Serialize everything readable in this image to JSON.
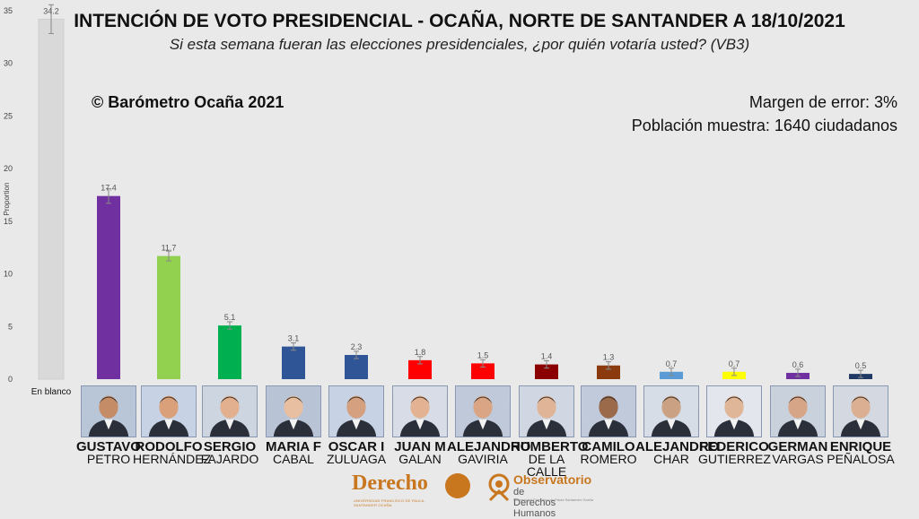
{
  "header": {
    "title": "INTENCIÓN DE VOTO PRESIDENCIAL - OCAÑA, NORTE DE SANTANDER A 18/10/2021",
    "subtitle": "Si esta semana fueran las elecciones presidenciales, ¿por quién votaría usted? (VB3)"
  },
  "copyright": "© Barómetro Ocaña 2021",
  "margin_of_error": "Margen de error: 3%",
  "sample": "Población muestra: 1640 ciudadanos",
  "chart_data": {
    "type": "bar",
    "ylabel": "Proportion",
    "ylim": [
      0,
      35
    ],
    "yticks": [
      0,
      5,
      10,
      15,
      20,
      25,
      30,
      35
    ],
    "grid": false,
    "error_bars": true,
    "categories": [
      "En blanco",
      "GUSTAVO PETRO",
      "RODOLFO HERNÁNDEZ",
      "SERGIO FAJARDO",
      "MARIA F CABAL",
      "OSCAR I ZULUAGA",
      "JUAN M GALAN",
      "ALEJANDRO GAVIRIA",
      "HUMBERTO DE LA CALLE",
      "CAMILO ROMERO",
      "ALEJANDRO CHAR",
      "FEDERICO GUTIERREZ",
      "GERMAN VARGAS",
      "ENRIQUE PEÑALOSA"
    ],
    "values": [
      34.2,
      17.4,
      11.7,
      5.1,
      3.1,
      2.3,
      1.8,
      1.5,
      1.4,
      1.3,
      0.7,
      0.7,
      0.6,
      0.5
    ],
    "value_labels": [
      "34.2",
      "17.4",
      "11.7",
      "5.1",
      "3.1",
      "2.3",
      "1.8",
      "1.5",
      "1.4",
      "1.3",
      "0.7",
      "0.7",
      "0.6",
      "0.5"
    ],
    "colors": [
      "#d9d9d9",
      "#7030a0",
      "#92d050",
      "#00b050",
      "#2f5597",
      "#2f5597",
      "#ff0000",
      "#ff0000",
      "#8b0000",
      "#8b3a0e",
      "#5b9bd5",
      "#ffff00",
      "#7030a0",
      "#1f3864"
    ]
  },
  "blank_label": "En blanco",
  "candidates": [
    {
      "first": "GUSTAVO",
      "last": "PETRO",
      "photo": "portrait-petro"
    },
    {
      "first": "RODOLFO",
      "last": "HERNÁNDEZ",
      "photo": "portrait-hernandez"
    },
    {
      "first": "SERGIO",
      "last": "FAJARDO",
      "photo": "portrait-fajardo"
    },
    {
      "first": "MARIA F",
      "last": "CABAL",
      "photo": "portrait-cabal"
    },
    {
      "first": "OSCAR I",
      "last": "ZULUAGA",
      "photo": "portrait-zuluaga"
    },
    {
      "first": "JUAN M",
      "last": "GALAN",
      "photo": "portrait-galan"
    },
    {
      "first": "ALEJANDRO",
      "last": "GAVIRIA",
      "photo": "portrait-gaviria"
    },
    {
      "first": "HUMBERTO",
      "last": "DE LA CALLE",
      "photo": "portrait-delacalle"
    },
    {
      "first": "CAMILO",
      "last": "ROMERO",
      "photo": "portrait-romero"
    },
    {
      "first": "ALEJANDRO",
      "last": "CHAR",
      "photo": "portrait-char"
    },
    {
      "first": "FEDERICO",
      "last": "GUTIERREZ",
      "photo": "portrait-gutierrez"
    },
    {
      "first": "GERMAN",
      "last": "VARGAS",
      "photo": "portrait-vargas"
    },
    {
      "first": "ENRIQUE",
      "last": "PEÑALOSA",
      "photo": "portrait-penalosa"
    }
  ],
  "logos": {
    "derecho": "Derecho",
    "derecho_sub": "UNIVERSIDAD FRANCISCO DE PAULA SANTANDER OCAÑA",
    "observatorio_line1": "Observatorio",
    "observatorio_line2": "de Derechos Humanos",
    "observatorio_sub": "Universidad Francisco de Paula Santander Ocaña"
  }
}
